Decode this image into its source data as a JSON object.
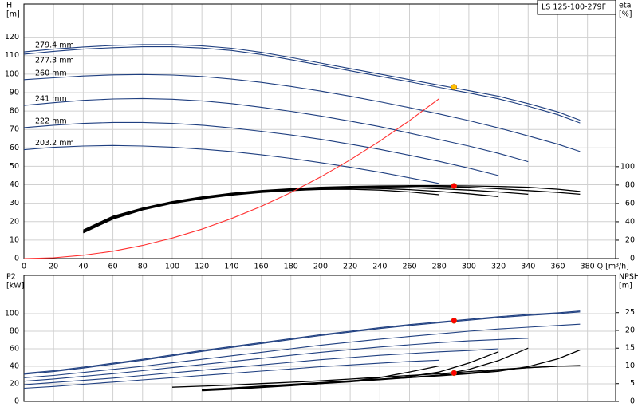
{
  "chart_data": [
    {
      "type": "line",
      "title": "LS 125-100-279F",
      "ylabel": "H",
      "yunit": "[m]",
      "y2label": "eta",
      "y2unit": "[%]",
      "xlabel": "Q [m³/h]",
      "x": [
        0,
        20,
        40,
        60,
        80,
        100,
        120,
        140,
        160,
        180,
        200,
        220,
        240,
        260,
        280,
        300,
        320,
        340,
        360,
        375
      ],
      "xlim": [
        0,
        399
      ],
      "xticks": [
        0,
        20,
        40,
        60,
        80,
        100,
        120,
        140,
        160,
        180,
        200,
        220,
        240,
        260,
        280,
        300,
        320,
        340,
        360,
        380
      ],
      "ylim": [
        0,
        138
      ],
      "yticks": [
        0,
        10,
        20,
        30,
        40,
        50,
        60,
        70,
        80,
        90,
        100,
        110,
        120
      ],
      "y2lim": [
        0,
        277
      ],
      "y2ticks": [
        0,
        20,
        40,
        60,
        80,
        100
      ],
      "grid": true,
      "series": [
        {
          "name": "279.4 mm",
          "color": "#1f3f80",
          "values": [
            112,
            113.5,
            114.7,
            115.5,
            116,
            116,
            115.3,
            114,
            111.8,
            109,
            106,
            103,
            100,
            97,
            94,
            91,
            88,
            84,
            79.5,
            75
          ]
        },
        {
          "name": "277.3 mm",
          "color": "#1f3f80",
          "values": [
            110.8,
            112.3,
            113.5,
            114.3,
            114.8,
            114.8,
            114.1,
            112.8,
            110.6,
            107.8,
            104.8,
            101.8,
            98.8,
            95.8,
            92.8,
            89.8,
            86.6,
            82.6,
            78,
            73.5
          ]
        },
        {
          "name": "260 mm",
          "color": "#1f3f80",
          "values": [
            97,
            98,
            99,
            99.6,
            99.8,
            99.5,
            98.7,
            97.3,
            95.5,
            93.3,
            90.8,
            88,
            85,
            81.8,
            78.4,
            74.8,
            70.8,
            66.5,
            62,
            58
          ]
        },
        {
          "name": "241 mm",
          "color": "#1f3f80",
          "values": [
            83,
            84.5,
            85.8,
            86.5,
            86.8,
            86.4,
            85.5,
            84,
            82,
            79.8,
            77.3,
            74.5,
            71.5,
            68,
            64.5,
            61,
            57,
            52.5,
            null,
            null
          ]
        },
        {
          "name": "222 mm",
          "color": "#1f3f80",
          "values": [
            71,
            72.3,
            73.3,
            73.8,
            73.8,
            73.3,
            72.3,
            70.8,
            69,
            67,
            64.7,
            62,
            59.2,
            56,
            52.7,
            49,
            45,
            null,
            null,
            null
          ]
        },
        {
          "name": "203.2 mm",
          "color": "#1f3f80",
          "values": [
            59,
            60.3,
            61,
            61.3,
            61,
            60.4,
            59.3,
            58,
            56.3,
            54.3,
            52,
            49.5,
            46.8,
            43.8,
            40.7,
            null,
            null,
            null,
            null,
            null
          ]
        },
        {
          "axis": "y2",
          "color": "#000000",
          "values": [
            null,
            null,
            31,
            46,
            55,
            62,
            67,
            71,
            74,
            76,
            77.5,
            78.5,
            79,
            79.3,
            79.3,
            79,
            78.5,
            77.5,
            75.5,
            73
          ]
        },
        {
          "axis": "y2",
          "color": "#000000",
          "values": [
            null,
            null,
            30,
            45,
            54.5,
            61.5,
            66.5,
            70.5,
            73.5,
            75.5,
            77,
            78,
            78.5,
            78.6,
            78.3,
            77.5,
            76,
            74,
            72,
            70
          ]
        },
        {
          "axis": "y2",
          "color": "#000000",
          "values": [
            null,
            null,
            29,
            44,
            54,
            61,
            66,
            70,
            73,
            75,
            76.5,
            77.3,
            77.6,
            77.2,
            76,
            74.5,
            72.5,
            70,
            null,
            null
          ]
        },
        {
          "axis": "y2",
          "color": "#000000",
          "values": [
            null,
            null,
            29,
            44,
            53.5,
            60.5,
            65.5,
            69.5,
            72.5,
            74.5,
            76,
            76.5,
            76.2,
            75,
            73,
            70.5,
            67.5,
            null,
            null,
            null
          ]
        },
        {
          "axis": "y2",
          "color": "#000000",
          "values": [
            null,
            null,
            28,
            43,
            53,
            60,
            65,
            69,
            72,
            74,
            75.3,
            75.5,
            74.5,
            72.5,
            69.5,
            null,
            null,
            null,
            null,
            null
          ]
        },
        {
          "color": "#ff3030",
          "values": [
            0,
            0.44,
            1.8,
            4,
            7.1,
            11.1,
            15.9,
            21.7,
            28.3,
            35.8,
            44.2,
            53.5,
            63.7,
            74.8,
            86.7,
            null,
            null,
            null,
            null,
            null
          ]
        }
      ],
      "markers": [
        {
          "x": 290,
          "y": 93,
          "color": "#ffc000"
        },
        {
          "x": 290,
          "y": 79,
          "axis": "y2",
          "color": "#ff0000"
        }
      ]
    },
    {
      "type": "line",
      "ylabel": "P2",
      "yunit": "[kW]",
      "y2label": "NPSH",
      "y2unit": "[m]",
      "x": [
        0,
        20,
        40,
        60,
        80,
        100,
        120,
        140,
        160,
        180,
        200,
        220,
        240,
        260,
        280,
        300,
        320,
        340,
        360,
        375
      ],
      "xlim": [
        0,
        399
      ],
      "xticks": [
        0,
        20,
        40,
        60,
        80,
        100,
        120,
        140,
        160,
        180,
        200,
        220,
        240,
        260,
        280,
        300,
        320,
        340,
        360,
        380
      ],
      "xtick_labels": false,
      "ylim": [
        0,
        143.6
      ],
      "yticks": [
        0,
        20,
        40,
        60,
        80,
        100
      ],
      "y2lim": [
        0,
        35.5
      ],
      "y2ticks": [
        0,
        5,
        10,
        15,
        20,
        25
      ],
      "grid": true,
      "series": [
        {
          "color": "#1f3f80",
          "values": [
            32,
            35,
            39,
            43.5,
            48,
            53,
            58,
            62.5,
            67,
            71.5,
            76,
            80,
            84,
            87.5,
            90.5,
            93.5,
            96.5,
            99,
            101,
            103
          ]
        },
        {
          "color": "#1f3f80",
          "values": [
            31,
            34,
            38,
            42.5,
            47,
            52,
            57,
            61.5,
            66,
            70.5,
            75,
            79,
            83,
            86.5,
            89.5,
            92.5,
            95.5,
            98,
            100,
            102
          ]
        },
        {
          "color": "#1f3f80",
          "values": [
            27,
            29.5,
            33,
            36.5,
            40,
            44,
            48,
            52,
            56,
            60,
            64,
            67.5,
            71,
            74,
            77,
            80,
            82.5,
            84.5,
            86.5,
            88
          ]
        },
        {
          "color": "#1f3f80",
          "values": [
            23,
            25.5,
            28.5,
            31.5,
            35,
            38.5,
            42,
            45.5,
            49,
            52.5,
            56,
            59,
            62,
            64.5,
            67,
            69,
            70.5,
            72,
            null,
            null
          ]
        },
        {
          "color": "#1f3f80",
          "values": [
            19,
            21.5,
            24,
            26.5,
            29.5,
            32.5,
            35.5,
            38.5,
            41.5,
            44.5,
            47.5,
            50,
            52.5,
            54.5,
            56.5,
            58,
            60,
            null,
            null,
            null
          ]
        },
        {
          "color": "#1f3f80",
          "values": [
            15,
            17,
            19.5,
            22,
            24.5,
            27,
            29.5,
            32,
            34.5,
            37,
            39.5,
            41.5,
            43.5,
            45.5,
            47,
            null,
            null,
            null,
            null,
            null
          ]
        },
        {
          "axis": "y2",
          "color": "#000000",
          "values": [
            null,
            null,
            null,
            null,
            null,
            4,
            4.3,
            4.6,
            5,
            5.4,
            5.8,
            6.3,
            6.8,
            7.3,
            7.8,
            8.4,
            9,
            9.5,
            9.9,
            10
          ]
        },
        {
          "axis": "y2",
          "color": "#000000",
          "values": [
            null,
            null,
            null,
            null,
            null,
            null,
            3.4,
            3.8,
            4.3,
            4.8,
            5.3,
            5.8,
            6.3,
            6.8,
            7.4,
            8,
            8.8,
            9.5,
            9.9,
            10.1
          ]
        },
        {
          "axis": "y2",
          "color": "#000000",
          "values": [
            null,
            null,
            null,
            null,
            null,
            null,
            3.3,
            3.7,
            4.2,
            4.7,
            5.2,
            5.7,
            6.2,
            6.7,
            7.2,
            7.8,
            8.5,
            9.8,
            12,
            14.5
          ]
        },
        {
          "axis": "y2",
          "color": "#000000",
          "values": [
            null,
            null,
            null,
            null,
            null,
            null,
            3.2,
            3.6,
            4.1,
            4.6,
            5.1,
            5.6,
            6.1,
            6.7,
            7.4,
            9,
            11.5,
            15,
            null,
            null
          ]
        },
        {
          "axis": "y2",
          "color": "#000000",
          "values": [
            null,
            null,
            null,
            null,
            null,
            null,
            3.1,
            3.5,
            4,
            4.5,
            5,
            5.5,
            6.2,
            7,
            8.3,
            10.8,
            14,
            null,
            null,
            null
          ]
        },
        {
          "axis": "y2",
          "color": "#000000",
          "values": [
            null,
            null,
            null,
            null,
            null,
            null,
            3,
            3.4,
            3.9,
            4.4,
            5,
            5.7,
            6.7,
            8.3,
            10,
            null,
            null,
            null,
            null,
            null
          ]
        }
      ],
      "markers": [
        {
          "x": 290,
          "y": 92,
          "color": "#ff0000"
        },
        {
          "x": 290,
          "y": 8,
          "axis": "y2",
          "color": "#ff0000"
        }
      ]
    }
  ]
}
